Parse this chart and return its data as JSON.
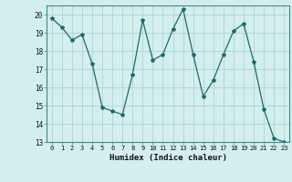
{
  "x": [
    0,
    1,
    2,
    3,
    4,
    5,
    6,
    7,
    8,
    9,
    10,
    11,
    12,
    13,
    14,
    15,
    16,
    17,
    18,
    19,
    20,
    21,
    22,
    23
  ],
  "y": [
    19.8,
    19.3,
    18.6,
    18.9,
    17.3,
    14.9,
    14.7,
    14.5,
    16.7,
    19.7,
    17.5,
    17.8,
    19.2,
    20.3,
    17.8,
    15.5,
    16.4,
    17.8,
    19.1,
    19.5,
    17.4,
    14.8,
    13.2,
    13.0
  ],
  "line_color": "#1a6b6b",
  "marker": "*",
  "marker_size": 3,
  "bg_color": "#d4eeee",
  "grid_color": "#b0d8d8",
  "xlabel": "Humidex (Indice chaleur)",
  "ylim": [
    13,
    20.5
  ],
  "xlim": [
    -0.5,
    23.5
  ],
  "yticks": [
    13,
    14,
    15,
    16,
    17,
    18,
    19,
    20
  ],
  "xticks": [
    0,
    1,
    2,
    3,
    4,
    5,
    6,
    7,
    8,
    9,
    10,
    11,
    12,
    13,
    14,
    15,
    16,
    17,
    18,
    19,
    20,
    21,
    22,
    23
  ]
}
